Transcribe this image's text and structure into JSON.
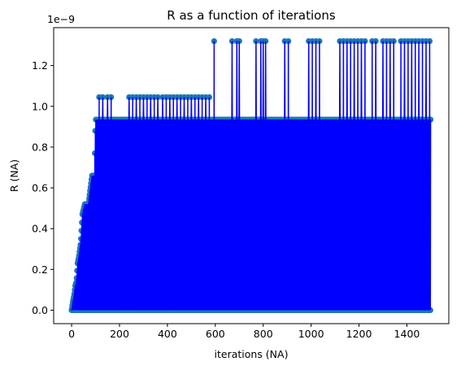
{
  "chart_data": {
    "type": "line",
    "title": "R as a function of iterations",
    "xlabel": "iterations (NA)",
    "ylabel": "R (NA)",
    "y_offset_label": "1e−9",
    "xlim": [
      -75,
      1575
    ],
    "ylim": [
      -0.066,
      1.386
    ],
    "xticks": [
      0,
      200,
      400,
      600,
      800,
      1000,
      1200,
      1400
    ],
    "yticks": [
      0.0,
      0.2,
      0.4,
      0.6,
      0.8,
      1.0,
      1.2
    ],
    "ytick_labels": [
      "0.0",
      "0.2",
      "0.4",
      "0.6",
      "0.8",
      "1.0",
      "1.2"
    ],
    "grid": false,
    "legend": "none",
    "series": [
      {
        "line_color": "#0000ff",
        "marker_color": "#1f77b4",
        "marker": "circle",
        "n_points": 1500,
        "baseline_value": 0.0,
        "envelope": [
          {
            "x": 0,
            "y": 0.0
          },
          {
            "x": 5,
            "y": 0.04
          },
          {
            "x": 10,
            "y": 0.07
          },
          {
            "x": 15,
            "y": 0.12
          },
          {
            "x": 20,
            "y": 0.14
          },
          {
            "x": 25,
            "y": 0.23
          },
          {
            "x": 30,
            "y": 0.26
          },
          {
            "x": 38,
            "y": 0.33
          },
          {
            "x": 45,
            "y": 0.47
          },
          {
            "x": 55,
            "y": 0.52
          },
          {
            "x": 70,
            "y": 0.52
          },
          {
            "x": 85,
            "y": 0.66
          },
          {
            "x": 95,
            "y": 0.66
          },
          {
            "x": 100,
            "y": 0.935
          },
          {
            "x": 240,
            "y": 0.935
          },
          {
            "x": 1500,
            "y": 0.935
          }
        ],
        "peaks_1_04": [
          115,
          130,
          150,
          165,
          240,
          255,
          270,
          285,
          300,
          315,
          330,
          345,
          360,
          380,
          395,
          410,
          425,
          440,
          455,
          470,
          485,
          500,
          515,
          530,
          545,
          560,
          575
        ],
        "peaks_1_32": [
          595,
          670,
          690,
          700,
          770,
          790,
          800,
          810,
          890,
          905,
          990,
          1005,
          1020,
          1035,
          1120,
          1135,
          1150,
          1165,
          1180,
          1195,
          1210,
          1225,
          1255,
          1270,
          1300,
          1315,
          1330,
          1345,
          1375,
          1390,
          1405,
          1420,
          1435,
          1450,
          1465,
          1480,
          1495
        ],
        "dips_0_48": [
          110,
          125,
          145,
          170,
          185,
          200,
          215,
          230
        ],
        "final_value": 0.935
      }
    ]
  }
}
